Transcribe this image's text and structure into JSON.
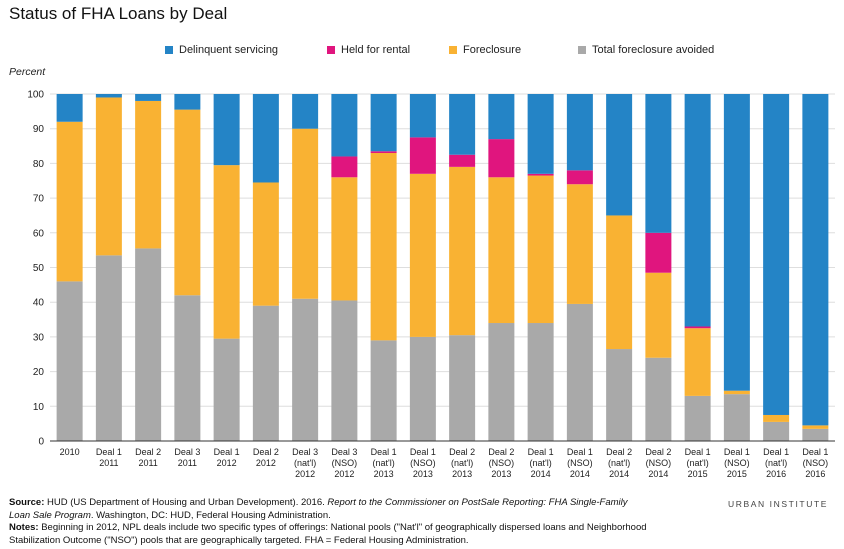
{
  "chart_data": {
    "type": "bar",
    "stacked": true,
    "title": "Status of FHA Loans by Deal",
    "ylabel": "Percent",
    "ylim": [
      0,
      100
    ],
    "yticks": [
      0,
      10,
      20,
      30,
      40,
      50,
      60,
      70,
      80,
      90,
      100
    ],
    "grid": true,
    "legend_position": "top",
    "categories": [
      [
        "2010"
      ],
      [
        "Deal 1",
        "2011"
      ],
      [
        "Deal 2",
        "2011"
      ],
      [
        "Deal 3",
        "2011"
      ],
      [
        "Deal 1",
        "2012"
      ],
      [
        "Deal 2",
        "2012"
      ],
      [
        "Deal 3",
        "(nat'l)",
        "2012"
      ],
      [
        "Deal 3",
        "(NSO)",
        "2012"
      ],
      [
        "Deal 1",
        "(nat'l)",
        "2013"
      ],
      [
        "Deal 1",
        "(NSO)",
        "2013"
      ],
      [
        "Deal 2",
        "(nat'l)",
        "2013"
      ],
      [
        "Deal 2",
        "(NSO)",
        "2013"
      ],
      [
        "Deal 1",
        "(nat'l)",
        "2014"
      ],
      [
        "Deal 1",
        "(NSO)",
        "2014"
      ],
      [
        "Deal 2",
        "(nat'l)",
        "2014"
      ],
      [
        "Deal 2",
        "(NSO)",
        "2014"
      ],
      [
        "Deal 1",
        "(nat'l)",
        "2015"
      ],
      [
        "Deal 1",
        "(NSO)",
        "2015"
      ],
      [
        "Deal 1",
        "(nat'l)",
        "2016"
      ],
      [
        "Deal 1",
        "(NSO)",
        "2016"
      ]
    ],
    "series": [
      {
        "name": "Total foreclosure avoided",
        "color": "#a9a9a9",
        "values": [
          46,
          53.5,
          55.5,
          42,
          29.5,
          39,
          41,
          40.5,
          29,
          30,
          30.5,
          34,
          34,
          39.5,
          26.5,
          24,
          13,
          13.5,
          5.5,
          3.5
        ]
      },
      {
        "name": "Foreclosure",
        "color": "#f9b233",
        "values": [
          46,
          45.5,
          42.5,
          53.5,
          50,
          35.5,
          49,
          35.5,
          54,
          47,
          48.5,
          42,
          42.5,
          34.5,
          38.5,
          24.5,
          19.5,
          1,
          2,
          1
        ]
      },
      {
        "name": "Held for rental",
        "color": "#e0157e",
        "values": [
          0,
          0,
          0,
          0,
          0,
          0,
          0,
          6,
          0.5,
          10.5,
          3.5,
          11,
          0.5,
          4,
          0,
          11.5,
          0.5,
          0,
          0,
          0
        ]
      },
      {
        "name": "Delinquent servicing",
        "color": "#2484c6",
        "values": [
          8,
          1,
          2,
          4.5,
          20.5,
          25.5,
          10,
          18,
          16.5,
          12.5,
          17.5,
          13,
          23,
          22,
          35,
          40,
          67,
          85.5,
          92.5,
          95.5
        ]
      }
    ],
    "legend_order": [
      "Delinquent servicing",
      "Held for rental",
      "Foreclosure",
      "Total foreclosure avoided"
    ]
  },
  "footer": {
    "source_label": "Source:",
    "source_text": " HUD (US Department of Housing and Urban Development). 2016. ",
    "source_italic": "Report to the Commissioner on PostSale Reporting: FHA Single-Family Loan Sale Program",
    "source_tail": ". Washington, DC: HUD, Federal Housing Administration.",
    "notes_label": "Notes:",
    "notes_text": " Beginning in 2012, NPL deals include two specific types of offerings: National pools (\"Nat'l\" of geographically dispersed loans and Neighborhood Stabilization Outcome (\"NSO\") pools that are geographically targeted. FHA = Federal Housing Administration."
  },
  "brand": "URBAN INSTITUTE"
}
